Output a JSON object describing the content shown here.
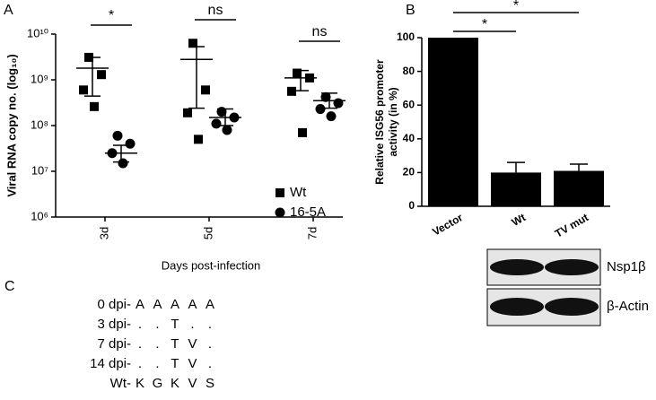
{
  "panel_labels": [
    "A",
    "B",
    "C"
  ],
  "chart_data": [
    {
      "type": "scatter",
      "log_y": true,
      "ylabel": "Viral RNA copy no. (log₁₀)",
      "xlabel": "Days post-infection",
      "categories": [
        "3d",
        "5d",
        "7d"
      ],
      "ylim": [
        1000000,
        10000000000
      ],
      "yticks": [
        {
          "value": 1000000,
          "label": "10⁶"
        },
        {
          "value": 10000000,
          "label": "10⁷"
        },
        {
          "value": 100000000,
          "label": "10⁸"
        },
        {
          "value": 1000000000,
          "label": "10⁹"
        },
        {
          "value": 10000000000,
          "label": "10¹⁰"
        }
      ],
      "significance": [
        "*",
        "ns",
        "ns"
      ],
      "legend": "lower right",
      "series": [
        {
          "name": "Wt",
          "marker": "square",
          "color": "#000000",
          "values": [
            [
              3100000000,
              1300000000,
              600000000,
              260000000
            ],
            [
              6300000000,
              600000000,
              190000000,
              50000000
            ],
            [
              1400000000,
              1100000000,
              560000000,
              70000000
            ]
          ],
          "mean": [
            1800000000,
            2800000000,
            1100000000
          ],
          "err_high": [
            3100000000,
            5300000000,
            1600000000
          ],
          "err_low": [
            440000000,
            240000000,
            580000000
          ]
        },
        {
          "name": "16-5A",
          "marker": "circle",
          "color": "#000000",
          "values": [
            [
              60000000,
              40000000,
              25000000,
              15000000
            ],
            [
              200000000,
              150000000,
              110000000,
              80000000
            ],
            [
              420000000,
              310000000,
              230000000,
              160000000
            ]
          ],
          "mean": [
            25000000,
            150000000,
            350000000
          ],
          "err_high": [
            37000000,
            230000000,
            510000000
          ],
          "err_low": [
            16000000,
            100000000,
            240000000
          ]
        }
      ]
    },
    {
      "type": "bar",
      "ylabel": [
        "Relative ISG56 promoter",
        "activity (in %)"
      ],
      "categories": [
        "Vector",
        "Wt",
        "TV mut"
      ],
      "values": [
        100,
        20,
        21
      ],
      "errors": [
        0,
        6,
        4
      ],
      "color": "#000000",
      "ylim": [
        0,
        100
      ],
      "yticks": [
        0,
        20,
        40,
        60,
        80,
        100
      ],
      "significance": [
        {
          "from": 0,
          "to": 1,
          "text": "*"
        },
        {
          "from": 0,
          "to": 2,
          "text": "*"
        }
      ]
    }
  ],
  "blot": {
    "labels": [
      "Nsp1β",
      "β-Actin"
    ]
  },
  "alignment": {
    "rows": [
      {
        "label": "0 dpi-",
        "residues": [
          "A",
          "A",
          "A",
          "A",
          "A"
        ]
      },
      {
        "label": "3 dpi-",
        "residues": [
          ".",
          ".",
          "T",
          ".",
          "."
        ]
      },
      {
        "label": "7 dpi-",
        "residues": [
          ".",
          ".",
          "T",
          "V",
          "."
        ]
      },
      {
        "label": "14 dpi-",
        "residues": [
          ".",
          ".",
          "T",
          "V",
          "."
        ]
      },
      {
        "label": "Wt-",
        "residues": [
          "K",
          "G",
          "K",
          "V",
          "S"
        ]
      }
    ]
  }
}
